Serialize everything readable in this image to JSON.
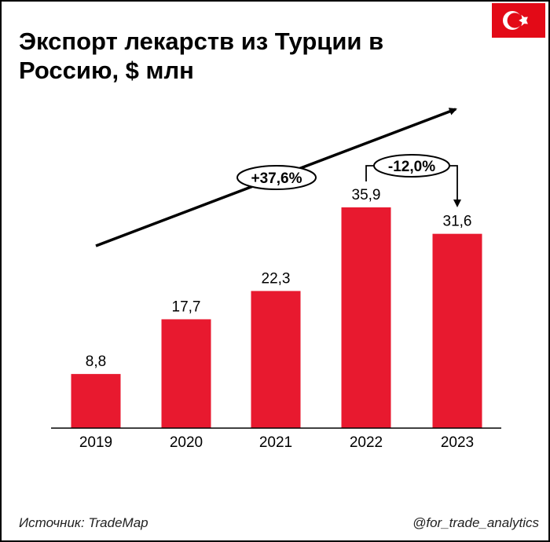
{
  "title": "Экспорт лекарств из Турции в Россию, $ млн",
  "flag_icon": "turkey-flag-icon",
  "colors": {
    "bar": "#E8192F",
    "flag": "#E30A17",
    "text": "#000000"
  },
  "chart_data": {
    "type": "bar",
    "title": "Экспорт лекарств из Турции в Россию, $ млн",
    "categories": [
      "2019",
      "2020",
      "2021",
      "2022",
      "2023"
    ],
    "values": [
      8.8,
      17.7,
      22.3,
      35.9,
      31.6
    ],
    "value_labels": [
      "8,8",
      "17,7",
      "22,3",
      "35,9",
      "31,6"
    ],
    "xlabel": "",
    "ylabel": "",
    "ylim": [
      0,
      40
    ],
    "grid": false,
    "annotations": [
      {
        "text": "+37,6%",
        "type": "trend-arrow",
        "from": "2019",
        "to": "2023"
      },
      {
        "text": "-12,0%",
        "type": "change-arrow",
        "from": "2022",
        "to": "2023"
      }
    ]
  },
  "footer": {
    "source": "Источник: TradeMap",
    "handle": "@for_trade_analytics"
  }
}
